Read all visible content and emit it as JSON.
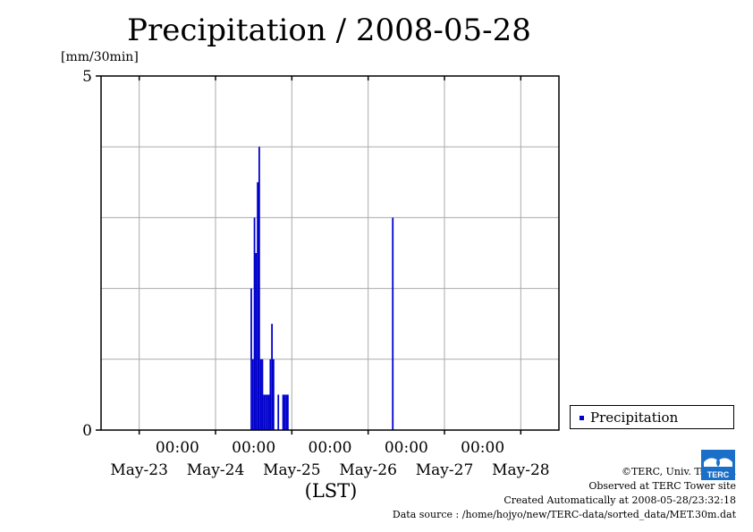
{
  "title": "Precipitation / 2008-05-28",
  "unit_label": "[mm/30min]",
  "legend": {
    "label": "Precipitation"
  },
  "credits": {
    "copyright": "©TERC, Univ. Tsukuba",
    "observed": "Observed at TERC Tower site",
    "created": "Created Automatically at 2008-05-28/23:32:18",
    "source": "Data source : /home/hojyo/new/TERC-data/sorted_data/MET.30m.dat"
  },
  "logo": {
    "icon": "terc-logo-icon",
    "text": "TERC"
  },
  "colors": {
    "series": "#0000cc",
    "grid": "#aaaaaa",
    "logo": "#1a6fc8"
  },
  "chart_data": {
    "type": "bar",
    "title": "Precipitation / 2008-05-28",
    "ylabel": "[mm/30min]",
    "xlabel": "(LST)",
    "ylim": [
      0,
      5
    ],
    "y_ticks": [
      "0",
      "5"
    ],
    "x_range": [
      "2008-05-23T00:00",
      "2008-05-29T00:00"
    ],
    "x_tick_times": [
      "00:00",
      "00:00",
      "00:00",
      "00:00",
      "00:00"
    ],
    "x_tick_dates": [
      "May-23",
      "May-24",
      "May-25",
      "May-26",
      "May-27",
      "May-28"
    ],
    "grid": true,
    "legend_position": "right",
    "series": [
      {
        "name": "Precipitation",
        "color": "#0000cc",
        "points": [
          {
            "x": "2008-05-24T23:00",
            "y": 2.0
          },
          {
            "x": "2008-05-24T23:30",
            "y": 1.0
          },
          {
            "x": "2008-05-25T00:00",
            "y": 3.0
          },
          {
            "x": "2008-05-25T00:30",
            "y": 2.5
          },
          {
            "x": "2008-05-25T01:00",
            "y": 3.5
          },
          {
            "x": "2008-05-25T01:30",
            "y": 4.0
          },
          {
            "x": "2008-05-25T02:00",
            "y": 1.0
          },
          {
            "x": "2008-05-25T02:30",
            "y": 1.0
          },
          {
            "x": "2008-05-25T03:00",
            "y": 0.5
          },
          {
            "x": "2008-05-25T03:30",
            "y": 0.5
          },
          {
            "x": "2008-05-25T04:00",
            "y": 0.5
          },
          {
            "x": "2008-05-25T04:30",
            "y": 0.5
          },
          {
            "x": "2008-05-25T05:00",
            "y": 1.0
          },
          {
            "x": "2008-05-25T05:30",
            "y": 1.5
          },
          {
            "x": "2008-05-25T06:00",
            "y": 1.0
          },
          {
            "x": "2008-05-25T07:30",
            "y": 0.5
          },
          {
            "x": "2008-05-25T09:00",
            "y": 0.5
          },
          {
            "x": "2008-05-25T09:30",
            "y": 0.5
          },
          {
            "x": "2008-05-25T10:00",
            "y": 0.5
          },
          {
            "x": "2008-05-25T10:30",
            "y": 0.5
          },
          {
            "x": "2008-05-26T19:30",
            "y": 3.0
          }
        ]
      }
    ]
  }
}
